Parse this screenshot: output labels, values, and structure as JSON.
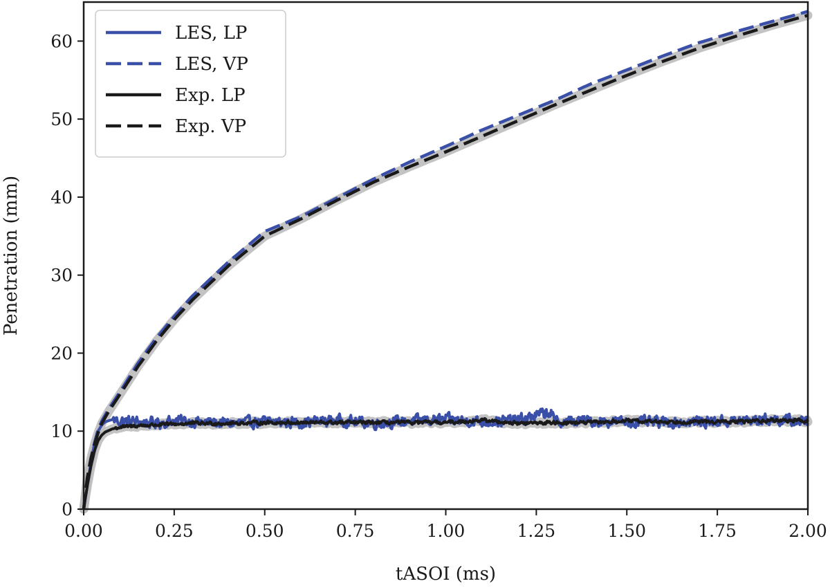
{
  "chart_data": {
    "type": "line",
    "xlabel": "tASOI (ms)",
    "ylabel": "Penetration (mm)",
    "xlim": [
      0,
      2.0
    ],
    "ylim": [
      0,
      65
    ],
    "xticks": [
      "0.00",
      "0.25",
      "0.50",
      "0.75",
      "1.00",
      "1.25",
      "1.50",
      "1.75",
      "2.00"
    ],
    "yticks": [
      "0",
      "10",
      "20",
      "30",
      "40",
      "50",
      "60"
    ],
    "grid": false,
    "legend_position": "top-left",
    "colors": {
      "les": "#3a4fa8",
      "exp": "#1a1a1a",
      "band": "#bdbdbd"
    },
    "series": [
      {
        "name": "LES, LP",
        "style": "solid",
        "color": "#3a4fa8",
        "x": [
          0,
          0.01,
          0.02,
          0.03,
          0.04,
          0.05,
          0.06,
          0.08,
          0.1,
          0.15,
          0.2,
          0.25,
          0.3,
          0.4,
          0.5,
          0.6,
          0.7,
          0.8,
          0.9,
          1.0,
          1.1,
          1.2,
          1.29,
          1.3,
          1.4,
          1.5,
          1.6,
          1.7,
          1.8,
          1.9,
          2.0
        ],
        "y": [
          0,
          3,
          6,
          8.5,
          10,
          10.8,
          11.2,
          11.5,
          11.3,
          11.2,
          11.0,
          11.4,
          11.2,
          11.0,
          11.2,
          11.1,
          11.4,
          11.0,
          11.3,
          11.5,
          11.2,
          11.4,
          12.5,
          11.2,
          11.3,
          11.2,
          11.1,
          11.2,
          11.3,
          11.5,
          11.2
        ],
        "noise_amplitude": 1.0
      },
      {
        "name": "LES, VP",
        "style": "dashed",
        "color": "#3a4fa8",
        "x": [
          0,
          0.01,
          0.02,
          0.03,
          0.04,
          0.05,
          0.07,
          0.1,
          0.15,
          0.2,
          0.25,
          0.3,
          0.4,
          0.5,
          0.6,
          0.7,
          0.8,
          0.9,
          1.0,
          1.1,
          1.2,
          1.3,
          1.4,
          1.5,
          1.6,
          1.7,
          1.8,
          1.9,
          2.0
        ],
        "y": [
          0,
          4,
          6.5,
          8.5,
          10.2,
          11.3,
          12.9,
          15.0,
          18.7,
          21.9,
          24.7,
          27.3,
          31.7,
          35.6,
          37.5,
          39.9,
          42.3,
          44.5,
          46.5,
          48.6,
          50.5,
          52.4,
          54.5,
          56.3,
          58.1,
          59.8,
          61.2,
          62.5,
          63.8
        ]
      },
      {
        "name": "Exp. LP",
        "style": "solid",
        "color": "#1a1a1a",
        "x": [
          0,
          0.01,
          0.02,
          0.03,
          0.04,
          0.05,
          0.06,
          0.08,
          0.1,
          0.15,
          0.2,
          0.3,
          0.4,
          0.5,
          0.6,
          0.7,
          0.8,
          0.9,
          1.0,
          1.1,
          1.2,
          1.3,
          1.4,
          1.5,
          1.6,
          1.7,
          1.8,
          1.9,
          2.0
        ],
        "y": [
          0,
          3,
          5.5,
          7.5,
          8.8,
          9.5,
          9.9,
          10.3,
          10.5,
          10.7,
          10.8,
          11.0,
          11.0,
          11.1,
          11.1,
          11.1,
          11.1,
          11.1,
          11.1,
          11.4,
          11.0,
          11.1,
          11.1,
          11.3,
          11.2,
          11.2,
          11.2,
          11.4,
          11.3
        ],
        "noise_amplitude": 0.3
      },
      {
        "name": "Exp. VP",
        "style": "dashed",
        "color": "#1a1a1a",
        "x": [
          0,
          0.01,
          0.02,
          0.03,
          0.04,
          0.05,
          0.07,
          0.1,
          0.15,
          0.2,
          0.25,
          0.3,
          0.4,
          0.5,
          0.6,
          0.7,
          0.8,
          0.9,
          1.0,
          1.1,
          1.2,
          1.3,
          1.4,
          1.5,
          1.6,
          1.7,
          1.8,
          1.9,
          2.0
        ],
        "y": [
          0,
          4,
          6.5,
          8.3,
          9.8,
          11.0,
          12.6,
          14.7,
          18.3,
          21.5,
          24.3,
          26.8,
          31.2,
          35.0,
          37.2,
          39.6,
          41.9,
          43.9,
          45.8,
          47.8,
          49.8,
          51.8,
          53.7,
          55.6,
          57.4,
          59.1,
          60.6,
          62.0,
          63.3
        ]
      }
    ]
  }
}
